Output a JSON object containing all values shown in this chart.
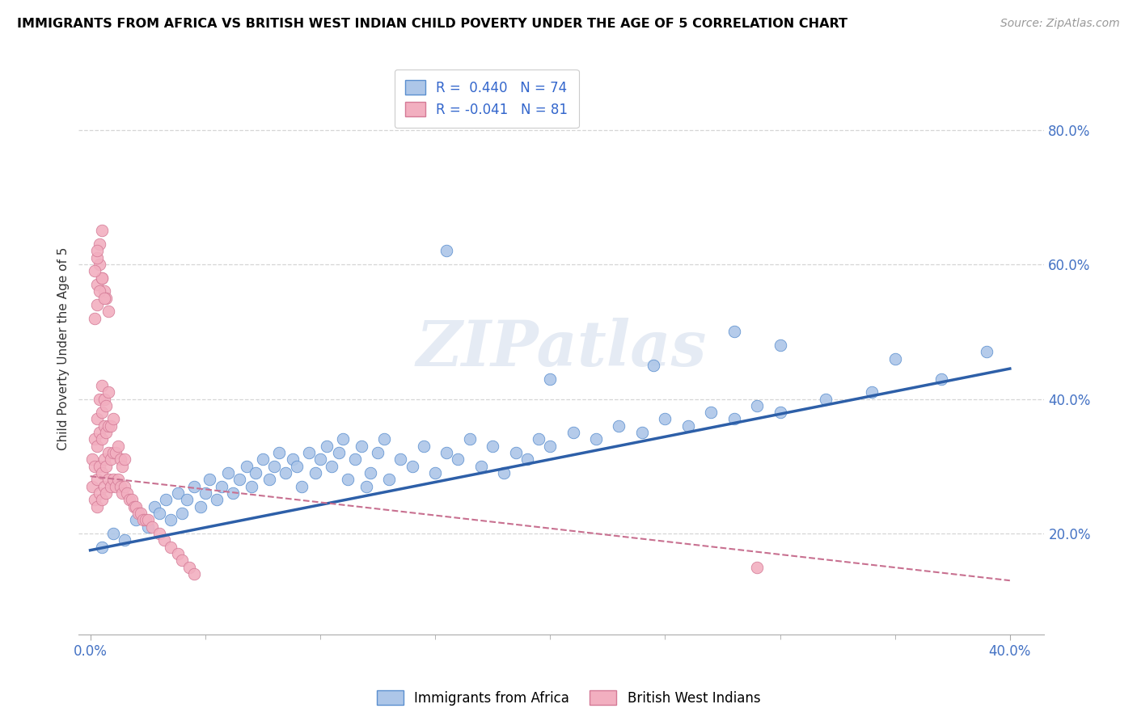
{
  "title": "IMMIGRANTS FROM AFRICA VS BRITISH WEST INDIAN CHILD POVERTY UNDER THE AGE OF 5 CORRELATION CHART",
  "source": "Source: ZipAtlas.com",
  "ylabel": "Child Poverty Under the Age of 5",
  "xlim": [
    -0.005,
    0.415
  ],
  "ylim": [
    0.05,
    0.9
  ],
  "xticks_minor": [
    0.05,
    0.1,
    0.15,
    0.2,
    0.25,
    0.3,
    0.35
  ],
  "xtick_end_labels": [
    "0.0%",
    "40.0%"
  ],
  "xtick_end_positions": [
    0.0,
    0.4
  ],
  "yticks_right": [
    0.2,
    0.4,
    0.6,
    0.8
  ],
  "ytick_labels_right": [
    "20.0%",
    "40.0%",
    "60.0%",
    "80.0%"
  ],
  "blue_R": 0.44,
  "blue_N": 74,
  "pink_R": -0.041,
  "pink_N": 81,
  "blue_color": "#adc6e8",
  "pink_color": "#f2afc0",
  "blue_edge_color": "#5b8fcf",
  "pink_edge_color": "#d47a96",
  "blue_line_color": "#2d5fa8",
  "pink_line_color": "#c87090",
  "watermark": "ZIPatlas",
  "legend_labels": [
    "Immigrants from Africa",
    "British West Indians"
  ],
  "blue_scatter_x": [
    0.005,
    0.01,
    0.015,
    0.02,
    0.025,
    0.028,
    0.03,
    0.033,
    0.035,
    0.038,
    0.04,
    0.042,
    0.045,
    0.048,
    0.05,
    0.052,
    0.055,
    0.057,
    0.06,
    0.062,
    0.065,
    0.068,
    0.07,
    0.072,
    0.075,
    0.078,
    0.08,
    0.082,
    0.085,
    0.088,
    0.09,
    0.092,
    0.095,
    0.098,
    0.1,
    0.103,
    0.105,
    0.108,
    0.11,
    0.112,
    0.115,
    0.118,
    0.12,
    0.122,
    0.125,
    0.128,
    0.13,
    0.135,
    0.14,
    0.145,
    0.15,
    0.155,
    0.16,
    0.165,
    0.17,
    0.175,
    0.18,
    0.185,
    0.19,
    0.195,
    0.2,
    0.21,
    0.22,
    0.23,
    0.24,
    0.25,
    0.26,
    0.27,
    0.28,
    0.29,
    0.3,
    0.32,
    0.34,
    0.37
  ],
  "blue_scatter_y": [
    0.18,
    0.2,
    0.19,
    0.22,
    0.21,
    0.24,
    0.23,
    0.25,
    0.22,
    0.26,
    0.23,
    0.25,
    0.27,
    0.24,
    0.26,
    0.28,
    0.25,
    0.27,
    0.29,
    0.26,
    0.28,
    0.3,
    0.27,
    0.29,
    0.31,
    0.28,
    0.3,
    0.32,
    0.29,
    0.31,
    0.3,
    0.27,
    0.32,
    0.29,
    0.31,
    0.33,
    0.3,
    0.32,
    0.34,
    0.28,
    0.31,
    0.33,
    0.27,
    0.29,
    0.32,
    0.34,
    0.28,
    0.31,
    0.3,
    0.33,
    0.29,
    0.32,
    0.31,
    0.34,
    0.3,
    0.33,
    0.29,
    0.32,
    0.31,
    0.34,
    0.33,
    0.35,
    0.34,
    0.36,
    0.35,
    0.37,
    0.36,
    0.38,
    0.37,
    0.39,
    0.38,
    0.4,
    0.41,
    0.43
  ],
  "blue_scatter_outliers_x": [
    0.155,
    0.28,
    0.3,
    0.35,
    0.39,
    0.2,
    0.245
  ],
  "blue_scatter_outliers_y": [
    0.62,
    0.5,
    0.48,
    0.46,
    0.47,
    0.43,
    0.45
  ],
  "pink_scatter_x": [
    0.001,
    0.001,
    0.002,
    0.002,
    0.002,
    0.003,
    0.003,
    0.003,
    0.003,
    0.004,
    0.004,
    0.004,
    0.004,
    0.005,
    0.005,
    0.005,
    0.005,
    0.005,
    0.006,
    0.006,
    0.006,
    0.006,
    0.007,
    0.007,
    0.007,
    0.007,
    0.008,
    0.008,
    0.008,
    0.008,
    0.009,
    0.009,
    0.009,
    0.01,
    0.01,
    0.01,
    0.011,
    0.011,
    0.012,
    0.012,
    0.013,
    0.013,
    0.014,
    0.014,
    0.015,
    0.015,
    0.016,
    0.017,
    0.018,
    0.019,
    0.02,
    0.021,
    0.022,
    0.023,
    0.024,
    0.025,
    0.027,
    0.03,
    0.032,
    0.035,
    0.038,
    0.04,
    0.043,
    0.045,
    0.003,
    0.004,
    0.005,
    0.006,
    0.007,
    0.008,
    0.002,
    0.003,
    0.004,
    0.005,
    0.006,
    0.003,
    0.004,
    0.005,
    0.002,
    0.003,
    0.29
  ],
  "pink_scatter_y": [
    0.27,
    0.31,
    0.25,
    0.3,
    0.34,
    0.24,
    0.28,
    0.33,
    0.37,
    0.26,
    0.3,
    0.35,
    0.4,
    0.25,
    0.29,
    0.34,
    0.38,
    0.42,
    0.27,
    0.31,
    0.36,
    0.4,
    0.26,
    0.3,
    0.35,
    0.39,
    0.28,
    0.32,
    0.36,
    0.41,
    0.27,
    0.31,
    0.36,
    0.28,
    0.32,
    0.37,
    0.27,
    0.32,
    0.28,
    0.33,
    0.27,
    0.31,
    0.26,
    0.3,
    0.27,
    0.31,
    0.26,
    0.25,
    0.25,
    0.24,
    0.24,
    0.23,
    0.23,
    0.22,
    0.22,
    0.22,
    0.21,
    0.2,
    0.19,
    0.18,
    0.17,
    0.16,
    0.15,
    0.14,
    0.57,
    0.6,
    0.58,
    0.56,
    0.55,
    0.53,
    0.52,
    0.54,
    0.56,
    0.58,
    0.55,
    0.61,
    0.63,
    0.65,
    0.59,
    0.62,
    0.15
  ],
  "blue_trend_x": [
    0.0,
    0.4
  ],
  "blue_trend_y": [
    0.175,
    0.445
  ],
  "pink_trend_x": [
    0.0,
    0.4
  ],
  "pink_trend_y": [
    0.285,
    0.13
  ]
}
